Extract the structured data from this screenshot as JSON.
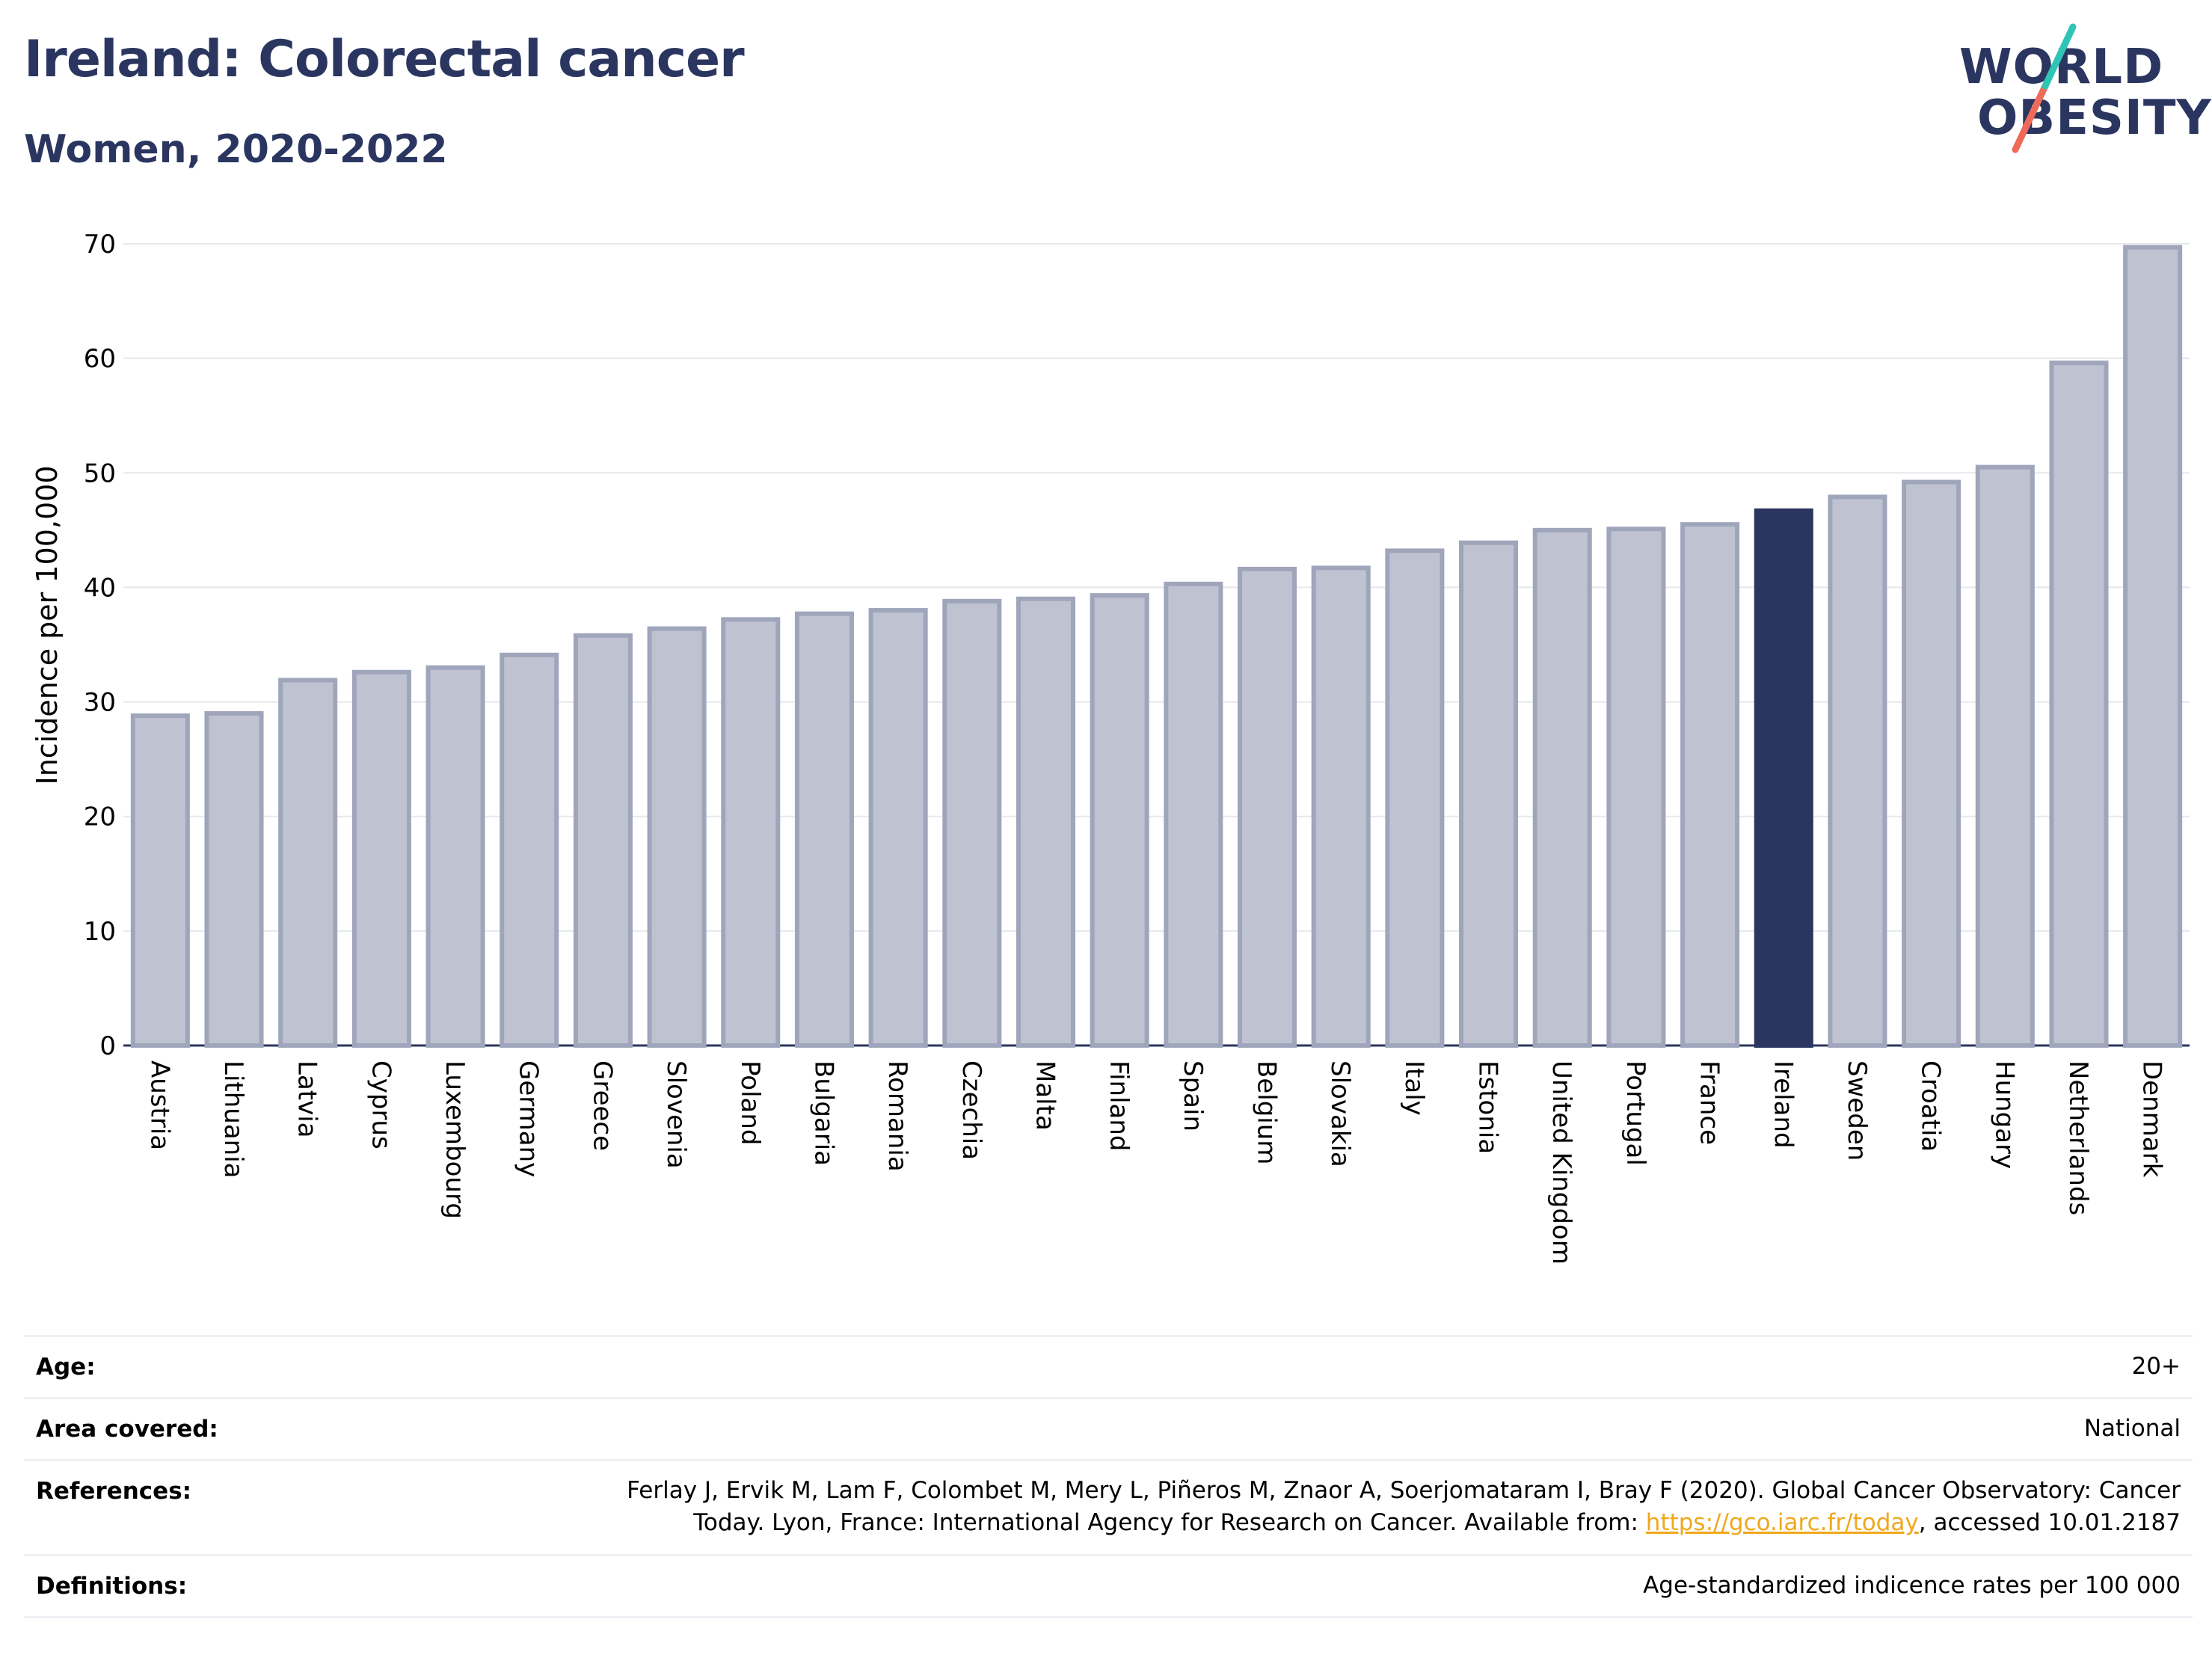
{
  "header": {
    "title": "Ireland: Colorectal cancer",
    "subtitle": "Women, 2020-2022",
    "logo_line1": "WORLD",
    "logo_line2": "OBESITY"
  },
  "colors": {
    "title": "#2b3660",
    "bar_default": "#bfc3d1",
    "bar_default_stroke": "#9fa5bb",
    "bar_highlight": "#2b3660",
    "logo_teal": "#2ec4b6",
    "logo_coral": "#ee6b5a",
    "link": "#f0a81c"
  },
  "chart_data": {
    "type": "bar",
    "ylabel": "Incidence per 100,000",
    "xlabel": "",
    "ylim": [
      0,
      70
    ],
    "yticks": [
      0,
      10,
      20,
      30,
      40,
      50,
      60,
      70
    ],
    "grid": true,
    "highlight": "Ireland",
    "categories": [
      "Austria",
      "Lithuania",
      "Latvia",
      "Cyprus",
      "Luxembourg",
      "Germany",
      "Greece",
      "Slovenia",
      "Poland",
      "Bulgaria",
      "Romania",
      "Czechia",
      "Malta",
      "Finland",
      "Spain",
      "Belgium",
      "Slovakia",
      "Italy",
      "Estonia",
      "United Kingdom",
      "Portugal",
      "France",
      "Ireland",
      "Sweden",
      "Croatia",
      "Hungary",
      "Netherlands",
      "Denmark"
    ],
    "values": [
      28.8,
      29.0,
      31.9,
      32.6,
      33.0,
      34.1,
      35.8,
      36.4,
      37.2,
      37.7,
      38.0,
      38.8,
      39.0,
      39.3,
      40.3,
      41.6,
      41.7,
      43.2,
      43.9,
      45.0,
      45.1,
      45.5,
      46.7,
      47.9,
      49.2,
      50.5,
      59.6,
      69.7
    ]
  },
  "info": {
    "age_label": "Age:",
    "age_value": "20+",
    "area_label": "Area covered:",
    "area_value": "National",
    "ref_label": "References:",
    "ref_line1": "Ferlay J, Ervik M, Lam F, Colombet M, Mery L, Piñeros M, Znaor A, Soerjomataram I, Bray F (2020). Global Cancer Observatory: Cancer",
    "ref_line2_pre": "Today. Lyon, France: International Agency for Research on Cancer. Available from: ",
    "ref_link": "https://gco.iarc.fr/today",
    "ref_line2_post": ", accessed 10.01.2187",
    "def_label": "Definitions:",
    "def_value": "Age-standardized indicence rates per 100 000"
  }
}
